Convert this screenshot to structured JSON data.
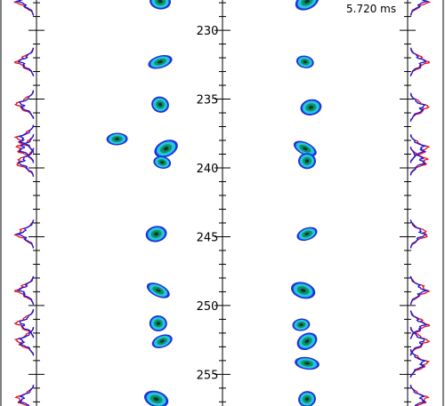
{
  "timestamp": "5.720 ms",
  "axis": {
    "tick_labels": [
      "230",
      "235",
      "240",
      "245",
      "250",
      "255"
    ],
    "tick_values": [
      230,
      235,
      240,
      245,
      250,
      255
    ],
    "range": [
      227.8,
      257.3
    ]
  },
  "colors": {
    "profile_red": "#e8131b",
    "profile_blue": "#1616d6",
    "blob_outer": "#2030e0",
    "blob_mid": "#22c8d8",
    "blob_inner": "#0f8f6a",
    "blob_core": "#0b3a2a"
  },
  "blobs_left": [
    {
      "y": 227.9,
      "x": 0
    },
    {
      "y": 232.3,
      "x": 0
    },
    {
      "y": 235.4,
      "x": 0
    },
    {
      "y": 237.9,
      "x": -2.2
    },
    {
      "y": 238.6,
      "x": 0.3
    },
    {
      "y": 239.6,
      "x": 0.1
    },
    {
      "y": 244.8,
      "x": -0.2
    },
    {
      "y": 248.9,
      "x": -0.1
    },
    {
      "y": 251.3,
      "x": -0.1
    },
    {
      "y": 252.6,
      "x": 0.1
    },
    {
      "y": 256.8,
      "x": -0.2
    }
  ],
  "blobs_right": [
    {
      "y": 227.9,
      "x": 0
    },
    {
      "y": 232.3,
      "x": -0.1
    },
    {
      "y": 235.6,
      "x": 0.2
    },
    {
      "y": 238.6,
      "x": -0.1
    },
    {
      "y": 239.5,
      "x": 0
    },
    {
      "y": 244.8,
      "x": 0
    },
    {
      "y": 248.9,
      "x": -0.2
    },
    {
      "y": 251.4,
      "x": -0.3
    },
    {
      "y": 252.6,
      "x": 0
    },
    {
      "y": 254.2,
      "x": 0
    },
    {
      "y": 256.8,
      "x": 0
    }
  ]
}
